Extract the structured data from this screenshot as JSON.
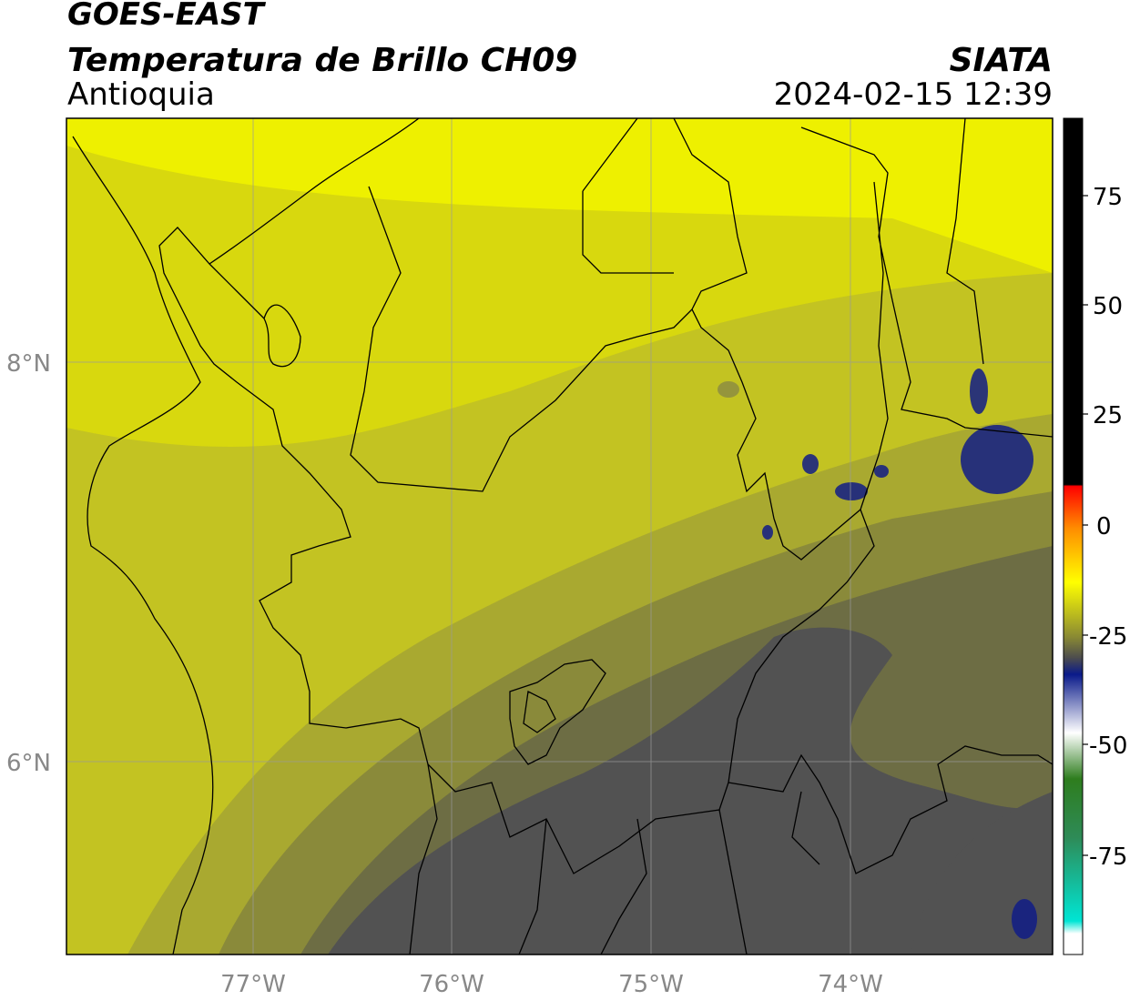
{
  "header": {
    "satellite": "GOES-EAST",
    "product": "Temperatura de Brillo CH09",
    "region": "Antioquia",
    "agency": "SIATA",
    "datetime": "2024-02-15 12:39"
  },
  "axes": {
    "lon_ticks": [
      "77°W",
      "76°W",
      "75°W",
      "74°W"
    ],
    "lat_ticks": [
      "8°N",
      "6°N"
    ]
  },
  "colorbar": {
    "ticks": [
      "75",
      "50",
      "25",
      "0",
      "-25",
      "-50",
      "-75"
    ],
    "colors": {
      "black": "#000000",
      "red": "#ff0000",
      "orange": "#ff8c00",
      "yellow": "#ffff00",
      "olive": "#9a9a2a",
      "gray": "#4d4d4d",
      "navy": "#0a1a8a",
      "white": "#ffffff",
      "green": "#2e7d1e",
      "cyan": "#00e5d4"
    }
  },
  "map_colors": {
    "bright_yellow": "#eef000",
    "yellow": "#d8d80e",
    "olive_yellow": "#c3c322",
    "olive": "#a9a930",
    "dark_olive": "#8a8a3a",
    "gray_olive": "#6d6d44",
    "gray": "#525252",
    "deep_blue": "#101c86",
    "boundary": "#000000",
    "grid": "#9a9a9a"
  }
}
